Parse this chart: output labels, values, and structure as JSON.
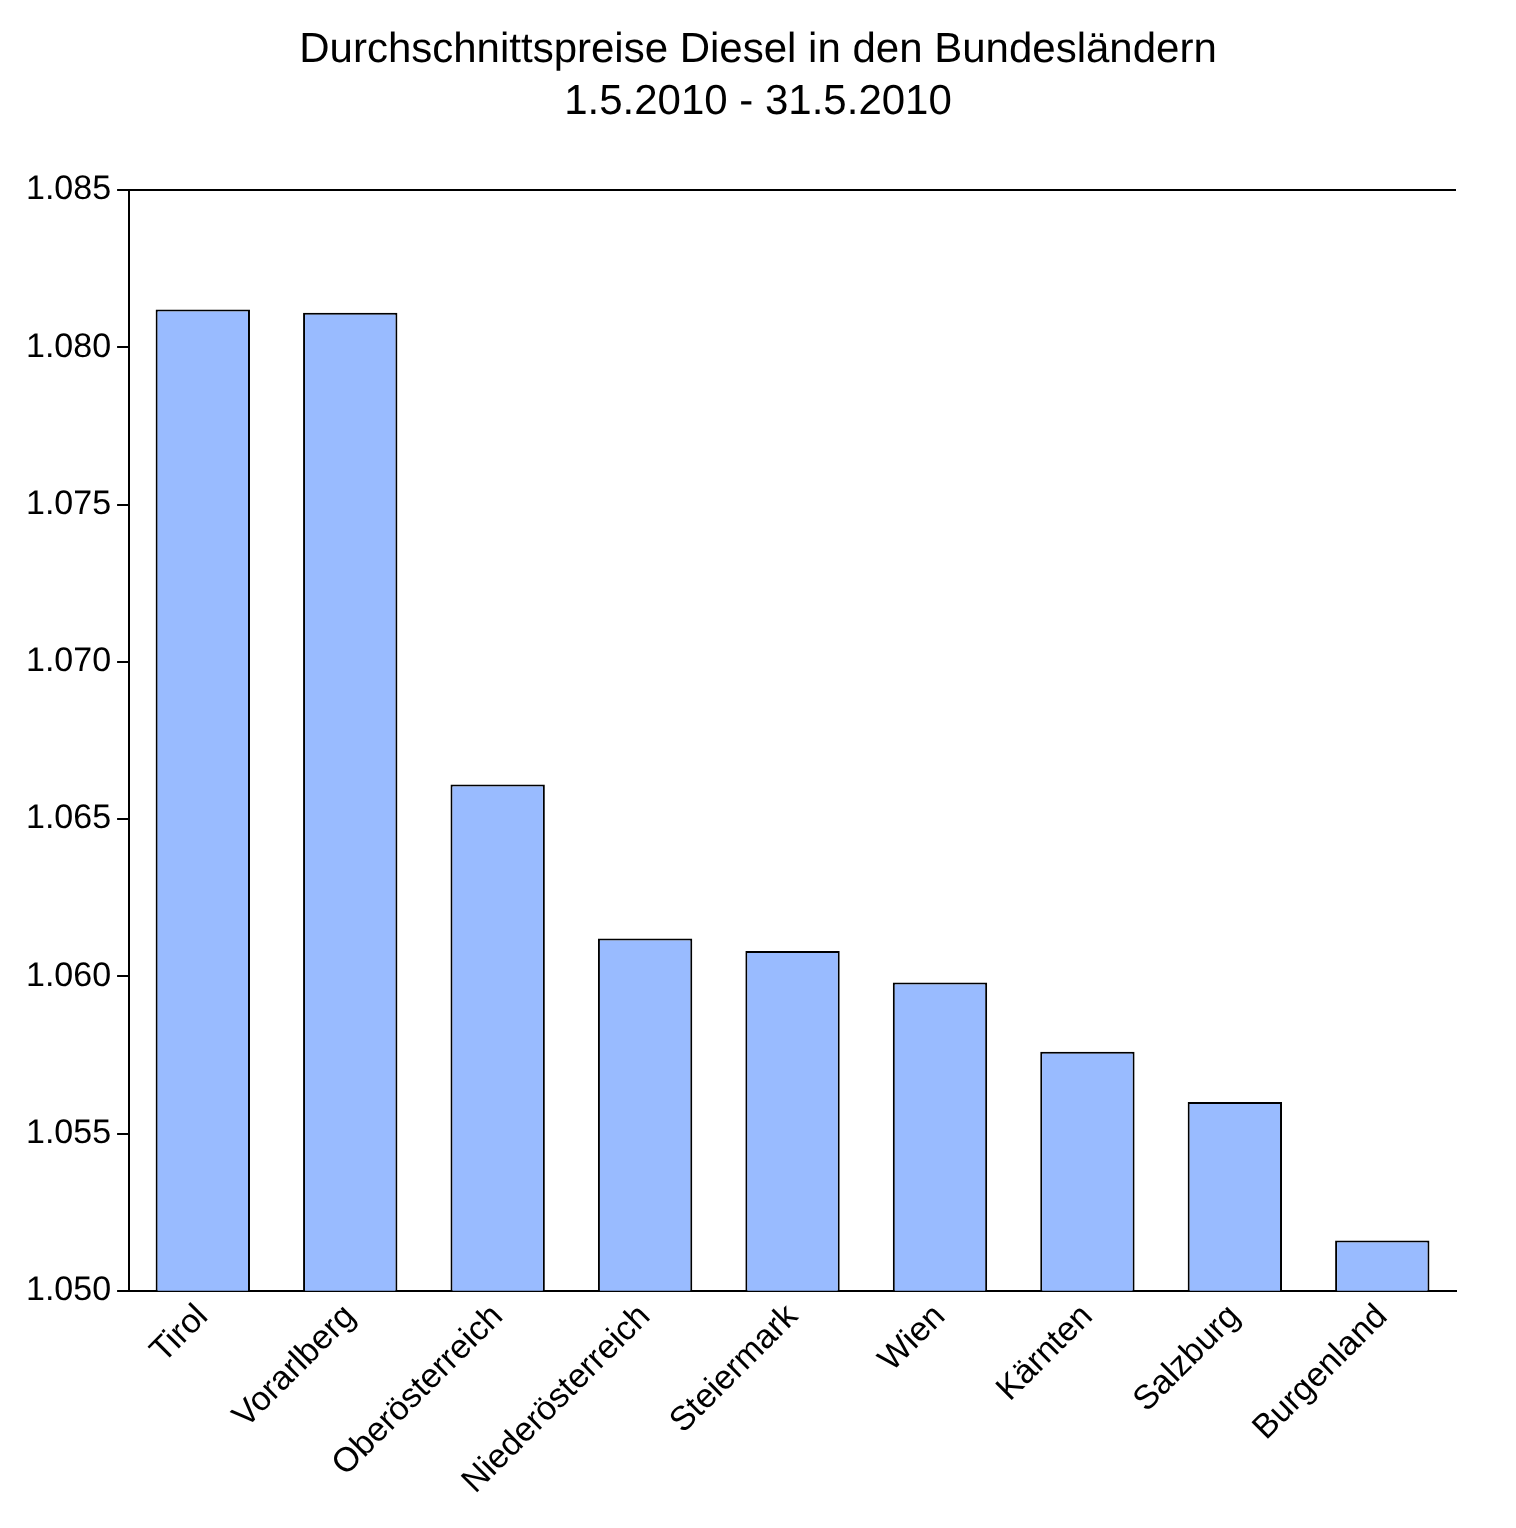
{
  "chart_data": {
    "type": "bar",
    "title": "Durchschnittspreise Diesel in den Bundesländern",
    "subtitle": "1.5.2010 - 31.5.2010",
    "categories": [
      "Tirol",
      "Vorarlberg",
      "Oberösterreich",
      "Niederösterreich",
      "Steiermark",
      "Wien",
      "Kärnten",
      "Salzburg",
      "Burgenland"
    ],
    "values": [
      1.0812,
      1.0811,
      1.0661,
      1.0612,
      1.0608,
      1.0598,
      1.0576,
      1.056,
      1.0516
    ],
    "color": "#99bbff",
    "ylim": [
      1.05,
      1.085
    ],
    "yticks": [
      {
        "value": 1.05,
        "label": "1.050"
      },
      {
        "value": 1.055,
        "label": "1.055"
      },
      {
        "value": 1.06,
        "label": "1.060"
      },
      {
        "value": 1.065,
        "label": "1.065"
      },
      {
        "value": 1.07,
        "label": "1.070"
      },
      {
        "value": 1.075,
        "label": "1.075"
      },
      {
        "value": 1.08,
        "label": "1.080"
      },
      {
        "value": 1.085,
        "label": "1.085"
      }
    ],
    "grid": false,
    "legend": false
  }
}
